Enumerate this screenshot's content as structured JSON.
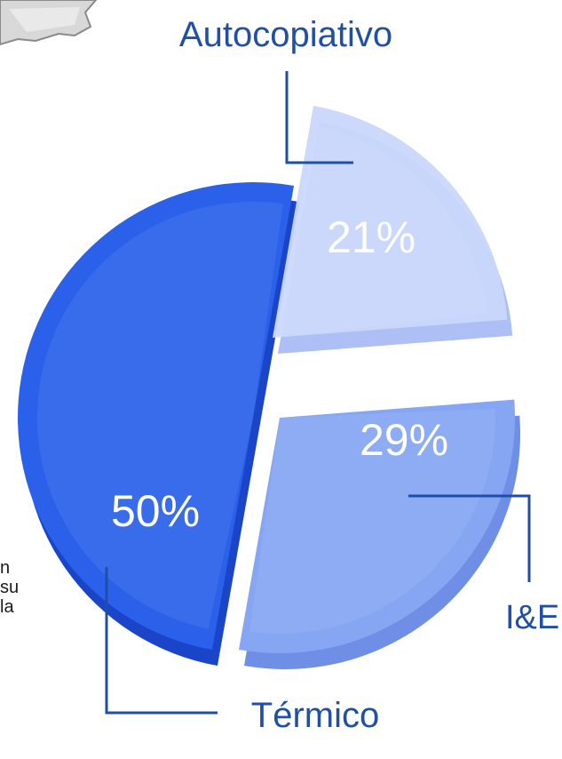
{
  "side_text": [
    "n",
    "su",
    "la"
  ],
  "colors": {
    "leader": "#1e4fa8",
    "label": "#1f4fa6",
    "pct": "#ffffff"
  },
  "chart_data": {
    "type": "pie",
    "title": "",
    "slices": [
      {
        "name": "Autocopiativo",
        "value": 21,
        "label": "21%",
        "color": "#c9d7fb"
      },
      {
        "name": "I&E",
        "value": 29,
        "label": "29%",
        "color": "#86a6f3"
      },
      {
        "name": "Térmico",
        "value": 50,
        "label": "50%",
        "color": "#2b61ea"
      }
    ]
  }
}
